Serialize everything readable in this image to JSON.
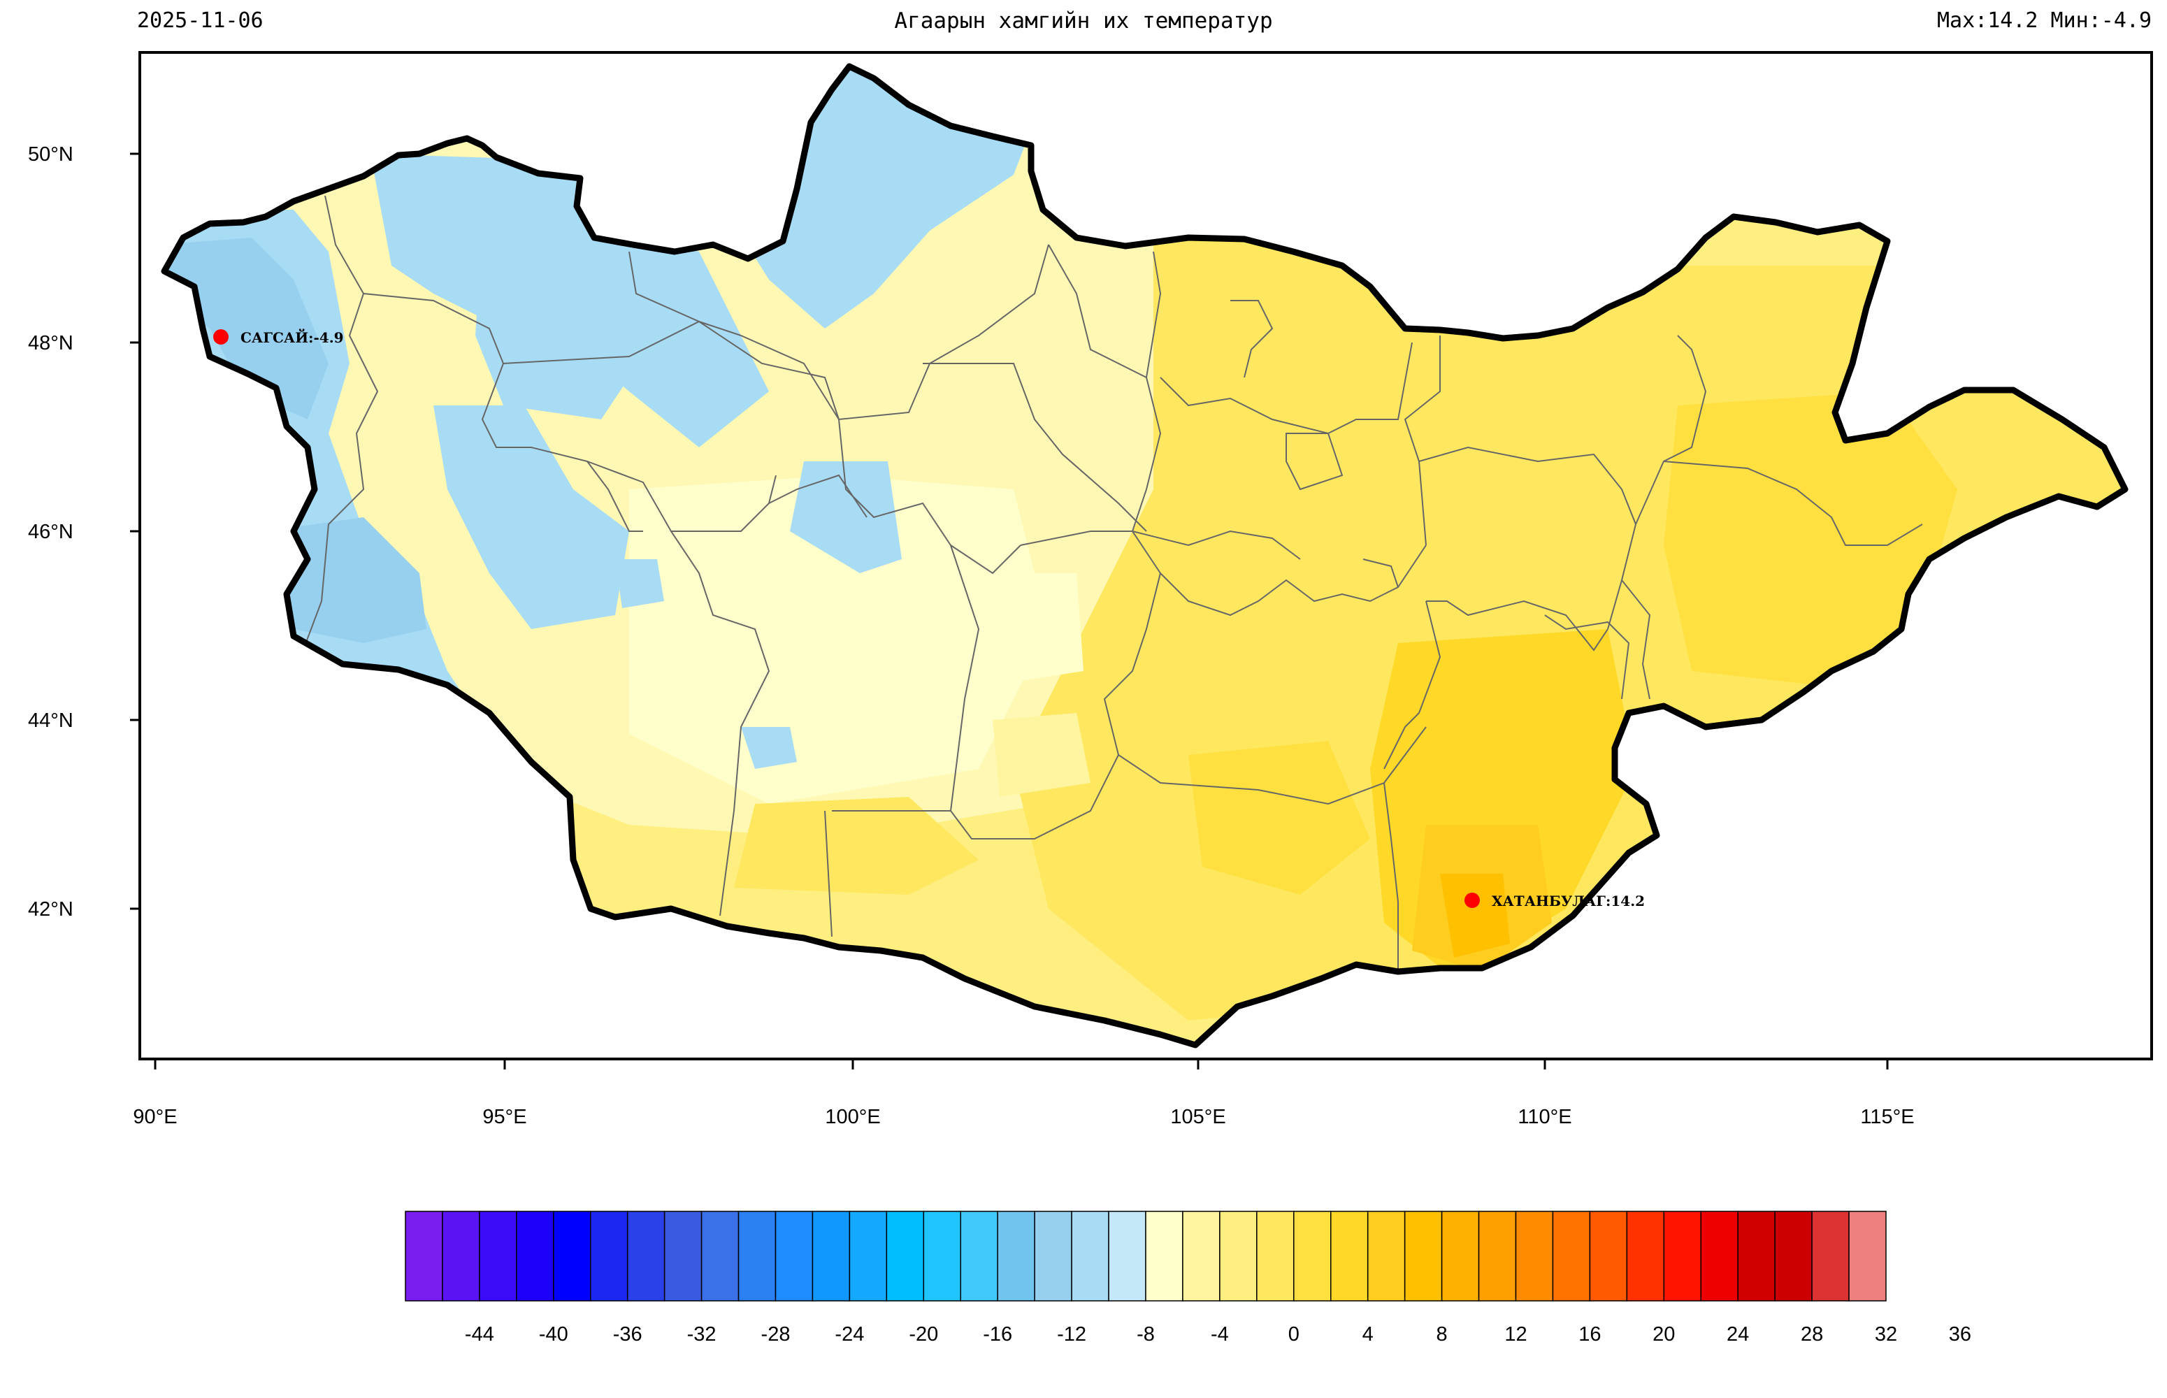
{
  "header": {
    "date": "2025-11-06",
    "title": "Агаарын хамгийн их температур",
    "stats": "Max:14.2 Мин:-4.9"
  },
  "map": {
    "lat_labels": [
      "50°N",
      "48°N",
      "46°N",
      "44°N",
      "42°N"
    ],
    "lon_labels": [
      "90°E",
      "95°E",
      "100°E",
      "105°E",
      "110°E",
      "115°E"
    ],
    "stations": [
      {
        "name": "САГСАЙ",
        "value": -4.9,
        "label": "САГСАЙ:-4.9",
        "color": "#ff0000"
      },
      {
        "name": "ХАТАНБУЛАГ",
        "value": 14.2,
        "label": "ХАТАНБУЛАГ:14.2",
        "color": "#ff0000"
      }
    ],
    "outline_color": "#000000",
    "boundary_color": "#666666"
  },
  "colorbar": {
    "colors": [
      "#7a1ef0",
      "#5a14f4",
      "#3c0cf8",
      "#1e00fa",
      "#0000ff",
      "#1a28f0",
      "#2a40e8",
      "#3a5ae0",
      "#3a70e8",
      "#2a80f0",
      "#1e8cff",
      "#1098ff",
      "#14a8ff",
      "#00beff",
      "#20c4ff",
      "#40c8f8",
      "#70c4ee",
      "#96d0ee",
      "#a8dcf4",
      "#c4e8f8",
      "#ffffcc",
      "#fff5a0",
      "#ffee80",
      "#ffe860",
      "#ffe040",
      "#ffd828",
      "#ffcc20",
      "#ffc000",
      "#ffb000",
      "#ffa000",
      "#ff8c00",
      "#ff7400",
      "#ff5a00",
      "#ff3200",
      "#ff1400",
      "#ee0000",
      "#d00000",
      "#cc0000",
      "#dd3333",
      "#ee8080"
    ],
    "labels": [
      "-44",
      "-40",
      "-36",
      "-32",
      "-28",
      "-24",
      "-20",
      "-16",
      "-12",
      "-8",
      "-4",
      "0",
      "4",
      "8",
      "12",
      "16",
      "20",
      "24",
      "28",
      "32",
      "36"
    ]
  }
}
